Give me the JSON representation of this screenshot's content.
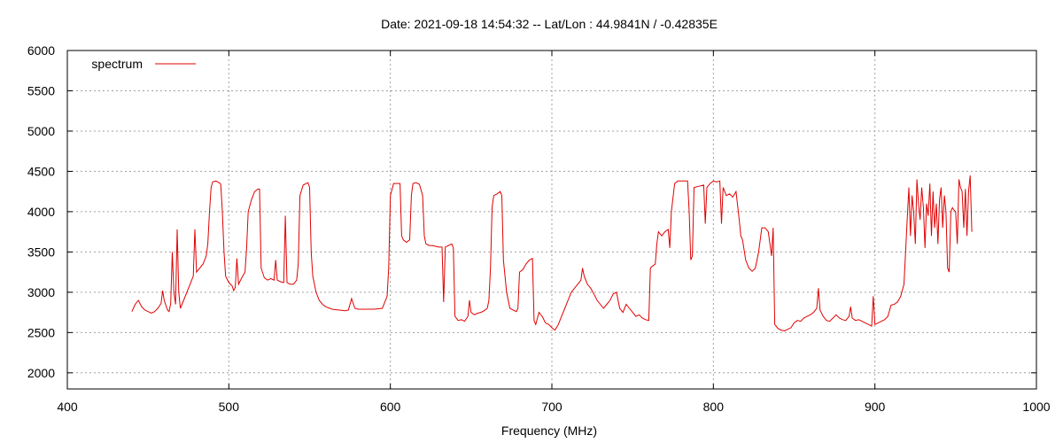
{
  "chart_data": {
    "type": "line",
    "title": "Date: 2021-09-18 14:54:32  --  Lat/Lon : 44.9841N / -0.42835E",
    "xlabel": "Frequency (MHz)",
    "ylabel": "",
    "xlim": [
      400,
      1000
    ],
    "ylim": [
      1800,
      6000
    ],
    "xticks": [
      400,
      500,
      600,
      700,
      800,
      900,
      1000
    ],
    "yticks": [
      2000,
      2500,
      3000,
      3500,
      4000,
      4500,
      5000,
      5500,
      6000
    ],
    "grid": true,
    "legend_position": "top-left",
    "series": [
      {
        "name": "spectrum",
        "color": "#e00000",
        "points": [
          [
            440,
            2760
          ],
          [
            442,
            2850
          ],
          [
            444,
            2900
          ],
          [
            446,
            2820
          ],
          [
            448,
            2780
          ],
          [
            450,
            2760
          ],
          [
            452,
            2740
          ],
          [
            454,
            2760
          ],
          [
            456,
            2800
          ],
          [
            458,
            2860
          ],
          [
            459,
            3020
          ],
          [
            460,
            2900
          ],
          [
            462,
            2780
          ],
          [
            463,
            2760
          ],
          [
            464,
            2860
          ],
          [
            465,
            3500
          ],
          [
            466,
            3000
          ],
          [
            467,
            2850
          ],
          [
            468,
            3780
          ],
          [
            469,
            3000
          ],
          [
            470,
            2800
          ],
          [
            472,
            2900
          ],
          [
            474,
            3000
          ],
          [
            476,
            3100
          ],
          [
            477,
            3150
          ],
          [
            478,
            3200
          ],
          [
            479,
            3780
          ],
          [
            480,
            3250
          ],
          [
            482,
            3300
          ],
          [
            484,
            3350
          ],
          [
            486,
            3450
          ],
          [
            487,
            3600
          ],
          [
            488,
            4000
          ],
          [
            489,
            4300
          ],
          [
            490,
            4370
          ],
          [
            492,
            4380
          ],
          [
            494,
            4360
          ],
          [
            495,
            4340
          ],
          [
            496,
            4000
          ],
          [
            497,
            3500
          ],
          [
            498,
            3200
          ],
          [
            500,
            3120
          ],
          [
            502,
            3080
          ],
          [
            503,
            3020
          ],
          [
            504,
            3060
          ],
          [
            505,
            3420
          ],
          [
            506,
            3100
          ],
          [
            508,
            3180
          ],
          [
            510,
            3250
          ],
          [
            511,
            3550
          ],
          [
            512,
            4000
          ],
          [
            514,
            4150
          ],
          [
            516,
            4250
          ],
          [
            518,
            4280
          ],
          [
            519,
            4280
          ],
          [
            520,
            3300
          ],
          [
            522,
            3180
          ],
          [
            524,
            3150
          ],
          [
            526,
            3170
          ],
          [
            528,
            3150
          ],
          [
            529,
            3400
          ],
          [
            530,
            3150
          ],
          [
            532,
            3130
          ],
          [
            534,
            3120
          ],
          [
            535,
            3950
          ],
          [
            536,
            3120
          ],
          [
            538,
            3100
          ],
          [
            540,
            3100
          ],
          [
            542,
            3150
          ],
          [
            543,
            3350
          ],
          [
            544,
            4200
          ],
          [
            546,
            4330
          ],
          [
            548,
            4350
          ],
          [
            549,
            4360
          ],
          [
            550,
            4300
          ],
          [
            551,
            3500
          ],
          [
            552,
            3200
          ],
          [
            554,
            3000
          ],
          [
            556,
            2900
          ],
          [
            558,
            2850
          ],
          [
            560,
            2820
          ],
          [
            564,
            2790
          ],
          [
            568,
            2780
          ],
          [
            572,
            2770
          ],
          [
            574,
            2780
          ],
          [
            576,
            2920
          ],
          [
            578,
            2800
          ],
          [
            580,
            2790
          ],
          [
            585,
            2790
          ],
          [
            590,
            2790
          ],
          [
            595,
            2800
          ],
          [
            598,
            2950
          ],
          [
            599,
            3300
          ],
          [
            600,
            4200
          ],
          [
            602,
            4350
          ],
          [
            604,
            4350
          ],
          [
            606,
            4350
          ],
          [
            607,
            3700
          ],
          [
            608,
            3650
          ],
          [
            610,
            3620
          ],
          [
            612,
            3650
          ],
          [
            613,
            4200
          ],
          [
            614,
            4350
          ],
          [
            616,
            4360
          ],
          [
            618,
            4340
          ],
          [
            620,
            4200
          ],
          [
            621,
            3700
          ],
          [
            622,
            3600
          ],
          [
            624,
            3580
          ],
          [
            626,
            3580
          ],
          [
            628,
            3570
          ],
          [
            630,
            3560
          ],
          [
            632,
            3560
          ],
          [
            633,
            2880
          ],
          [
            634,
            3560
          ],
          [
            636,
            3580
          ],
          [
            638,
            3600
          ],
          [
            639,
            3550
          ],
          [
            640,
            2700
          ],
          [
            642,
            2650
          ],
          [
            644,
            2660
          ],
          [
            646,
            2640
          ],
          [
            648,
            2700
          ],
          [
            649,
            2900
          ],
          [
            650,
            2750
          ],
          [
            652,
            2720
          ],
          [
            654,
            2740
          ],
          [
            656,
            2750
          ],
          [
            658,
            2770
          ],
          [
            660,
            2800
          ],
          [
            661,
            2900
          ],
          [
            662,
            3300
          ],
          [
            663,
            4050
          ],
          [
            664,
            4200
          ],
          [
            666,
            4220
          ],
          [
            668,
            4250
          ],
          [
            669,
            4200
          ],
          [
            670,
            3400
          ],
          [
            672,
            3000
          ],
          [
            674,
            2800
          ],
          [
            676,
            2780
          ],
          [
            678,
            2760
          ],
          [
            679,
            2800
          ],
          [
            680,
            3250
          ],
          [
            682,
            3280
          ],
          [
            684,
            3350
          ],
          [
            686,
            3400
          ],
          [
            688,
            3420
          ],
          [
            689,
            2650
          ],
          [
            690,
            2600
          ],
          [
            692,
            2750
          ],
          [
            694,
            2700
          ],
          [
            696,
            2620
          ],
          [
            698,
            2600
          ],
          [
            700,
            2560
          ],
          [
            702,
            2530
          ],
          [
            704,
            2600
          ],
          [
            706,
            2700
          ],
          [
            708,
            2800
          ],
          [
            710,
            2900
          ],
          [
            712,
            3000
          ],
          [
            714,
            3050
          ],
          [
            716,
            3100
          ],
          [
            718,
            3150
          ],
          [
            719,
            3300
          ],
          [
            720,
            3200
          ],
          [
            722,
            3100
          ],
          [
            724,
            3050
          ],
          [
            726,
            2980
          ],
          [
            728,
            2900
          ],
          [
            730,
            2850
          ],
          [
            732,
            2800
          ],
          [
            734,
            2850
          ],
          [
            736,
            2900
          ],
          [
            738,
            2980
          ],
          [
            740,
            3000
          ],
          [
            742,
            2800
          ],
          [
            744,
            2750
          ],
          [
            746,
            2850
          ],
          [
            748,
            2800
          ],
          [
            750,
            2750
          ],
          [
            752,
            2700
          ],
          [
            754,
            2720
          ],
          [
            756,
            2680
          ],
          [
            758,
            2660
          ],
          [
            760,
            2650
          ],
          [
            761,
            3300
          ],
          [
            762,
            3320
          ],
          [
            764,
            3350
          ],
          [
            765,
            3600
          ],
          [
            766,
            3750
          ],
          [
            768,
            3700
          ],
          [
            770,
            3750
          ],
          [
            772,
            3780
          ],
          [
            773,
            3550
          ],
          [
            774,
            4000
          ],
          [
            776,
            4350
          ],
          [
            778,
            4380
          ],
          [
            780,
            4380
          ],
          [
            782,
            4380
          ],
          [
            784,
            4380
          ],
          [
            785,
            4000
          ],
          [
            786,
            3400
          ],
          [
            787,
            3450
          ],
          [
            788,
            4300
          ],
          [
            790,
            4310
          ],
          [
            792,
            4320
          ],
          [
            794,
            4330
          ],
          [
            795,
            3850
          ],
          [
            796,
            4300
          ],
          [
            798,
            4350
          ],
          [
            800,
            4380
          ],
          [
            802,
            4370
          ],
          [
            804,
            4380
          ],
          [
            805,
            3850
          ],
          [
            806,
            4300
          ],
          [
            808,
            4200
          ],
          [
            810,
            4220
          ],
          [
            812,
            4180
          ],
          [
            814,
            4250
          ],
          [
            816,
            3900
          ],
          [
            817,
            3700
          ],
          [
            818,
            3650
          ],
          [
            820,
            3400
          ],
          [
            822,
            3300
          ],
          [
            824,
            3260
          ],
          [
            826,
            3300
          ],
          [
            828,
            3500
          ],
          [
            830,
            3800
          ],
          [
            832,
            3800
          ],
          [
            834,
            3750
          ],
          [
            836,
            3450
          ],
          [
            837,
            3800
          ],
          [
            838,
            2600
          ],
          [
            840,
            2550
          ],
          [
            842,
            2530
          ],
          [
            844,
            2520
          ],
          [
            846,
            2540
          ],
          [
            848,
            2560
          ],
          [
            850,
            2620
          ],
          [
            852,
            2650
          ],
          [
            854,
            2640
          ],
          [
            856,
            2680
          ],
          [
            858,
            2700
          ],
          [
            860,
            2720
          ],
          [
            862,
            2750
          ],
          [
            864,
            2800
          ],
          [
            865,
            3050
          ],
          [
            866,
            2780
          ],
          [
            868,
            2700
          ],
          [
            870,
            2650
          ],
          [
            872,
            2640
          ],
          [
            874,
            2680
          ],
          [
            876,
            2720
          ],
          [
            878,
            2680
          ],
          [
            880,
            2660
          ],
          [
            882,
            2650
          ],
          [
            884,
            2700
          ],
          [
            885,
            2820
          ],
          [
            886,
            2680
          ],
          [
            888,
            2650
          ],
          [
            890,
            2660
          ],
          [
            892,
            2640
          ],
          [
            894,
            2620
          ],
          [
            896,
            2600
          ],
          [
            898,
            2580
          ],
          [
            899,
            2950
          ],
          [
            900,
            2600
          ],
          [
            902,
            2620
          ],
          [
            904,
            2640
          ],
          [
            906,
            2660
          ],
          [
            908,
            2700
          ],
          [
            910,
            2840
          ],
          [
            912,
            2850
          ],
          [
            914,
            2880
          ],
          [
            916,
            2950
          ],
          [
            918,
            3100
          ],
          [
            919,
            3500
          ],
          [
            920,
            3900
          ],
          [
            921,
            4300
          ],
          [
            922,
            3700
          ],
          [
            923,
            4200
          ],
          [
            924,
            4000
          ],
          [
            925,
            3600
          ],
          [
            926,
            4400
          ],
          [
            927,
            4100
          ],
          [
            928,
            3900
          ],
          [
            929,
            4300
          ],
          [
            930,
            4050
          ],
          [
            931,
            3550
          ],
          [
            932,
            4100
          ],
          [
            933,
            3950
          ],
          [
            934,
            4350
          ],
          [
            935,
            3700
          ],
          [
            936,
            4250
          ],
          [
            937,
            3800
          ],
          [
            938,
            4100
          ],
          [
            939,
            3600
          ],
          [
            940,
            4150
          ],
          [
            941,
            4300
          ],
          [
            942,
            3800
          ],
          [
            943,
            4200
          ],
          [
            944,
            4000
          ],
          [
            945,
            3300
          ],
          [
            946,
            3250
          ],
          [
            947,
            4000
          ],
          [
            948,
            4050
          ],
          [
            949,
            4020
          ],
          [
            950,
            4000
          ],
          [
            951,
            3600
          ],
          [
            952,
            4400
          ],
          [
            953,
            4300
          ],
          [
            954,
            4250
          ],
          [
            955,
            3800
          ],
          [
            956,
            4280
          ],
          [
            957,
            3700
          ],
          [
            958,
            4250
          ],
          [
            959,
            4450
          ],
          [
            960,
            3750
          ]
        ]
      }
    ]
  }
}
